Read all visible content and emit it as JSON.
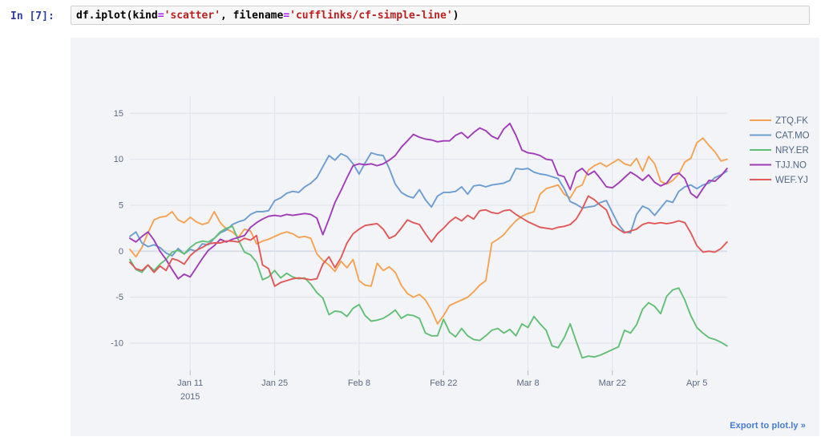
{
  "notebook": {
    "prompt": "In [7]:",
    "code_tokens": [
      {
        "text": "df.iplot(kind",
        "type": "plain"
      },
      {
        "text": "=",
        "type": "op"
      },
      {
        "text": "'scatter'",
        "type": "string"
      },
      {
        "text": ", filename",
        "type": "plain"
      },
      {
        "text": "=",
        "type": "op"
      },
      {
        "text": "'cufflinks/cf-simple-line'",
        "type": "string"
      },
      {
        "text": ")",
        "type": "plain"
      }
    ]
  },
  "export_link_label": "Export to plot.ly »",
  "colors": {
    "chart_background": "#f2f4f8",
    "grid": "#e2e6ee",
    "zero_line": "#d9dee8",
    "tick_mark": "#b4bcc9",
    "tick_text": "#5c6a82",
    "legend_text": "#506784",
    "prompt_blue": "#303F9F",
    "string_red": "#BA2121",
    "operator_purple": "#AA22FF",
    "export_blue": "#447adb"
  },
  "chart_data": {
    "type": "line",
    "title": "",
    "xlabel": "",
    "ylabel": "",
    "grid": true,
    "legend_position": "right",
    "x_unit": "days since Jan 1 2015 (daily points)",
    "x_range": [
      0,
      99
    ],
    "ylim": [
      -13.2,
      16.8
    ],
    "yticks": [
      15,
      10,
      5,
      0,
      -5,
      -10
    ],
    "xticks": [
      {
        "day": 10,
        "label": "Jan 11",
        "sublabel": "2015"
      },
      {
        "day": 24,
        "label": "Jan 25",
        "sublabel": ""
      },
      {
        "day": 38,
        "label": "Feb 8",
        "sublabel": ""
      },
      {
        "day": 52,
        "label": "Feb 22",
        "sublabel": ""
      },
      {
        "day": 66,
        "label": "Mar 8",
        "sublabel": ""
      },
      {
        "day": 80,
        "label": "Mar 22",
        "sublabel": ""
      },
      {
        "day": 94,
        "label": "Apr 5",
        "sublabel": ""
      }
    ],
    "series": [
      {
        "name": "ZTQ.FK",
        "color": "#f5a352",
        "values": [
          0.2,
          -0.6,
          0.4,
          2.0,
          3.4,
          3.7,
          3.8,
          4.3,
          3.4,
          3.1,
          3.7,
          3.2,
          2.9,
          3.1,
          4.3,
          3.1,
          2.4,
          2.1,
          1.5,
          2.4,
          2.2,
          0.8,
          1.1,
          1.3,
          1.6,
          1.9,
          2.1,
          1.9,
          1.5,
          1.6,
          1.4,
          -0.3,
          -1.0,
          -1.5,
          -2.2,
          -1.1,
          -1.8,
          -0.9,
          -3.2,
          -3.7,
          -3.8,
          -1.3,
          -2.1,
          -1.7,
          -2.3,
          -3.7,
          -4.6,
          -5.0,
          -4.7,
          -5.3,
          -6.4,
          -7.9,
          -7.0,
          -5.9,
          -5.6,
          -5.3,
          -5.0,
          -4.4,
          -3.7,
          -3.2,
          0.9,
          1.3,
          1.8,
          2.6,
          3.3,
          3.8,
          4.1,
          4.3,
          6.2,
          6.8,
          7.0,
          7.2,
          6.2,
          5.8,
          6.9,
          7.2,
          8.8,
          9.3,
          9.6,
          9.2,
          9.6,
          10.0,
          9.5,
          9.3,
          10.1,
          8.7,
          10.3,
          9.5,
          7.6,
          7.3,
          7.7,
          8.4,
          9.7,
          10.1,
          11.8,
          12.3,
          11.5,
          10.8,
          9.8,
          10.0
        ]
      },
      {
        "name": "CAT.MO",
        "color": "#6d9dd1",
        "values": [
          1.6,
          2.1,
          0.9,
          0.5,
          0.7,
          0.4,
          -0.2,
          -0.5,
          0.3,
          -0.3,
          0.2,
          0.0,
          0.8,
          0.7,
          1.4,
          2.0,
          2.3,
          2.9,
          3.2,
          3.4,
          4.0,
          4.3,
          4.3,
          4.4,
          5.5,
          5.8,
          6.3,
          6.5,
          6.4,
          7.0,
          7.4,
          8.0,
          9.2,
          10.4,
          9.9,
          10.6,
          10.3,
          9.5,
          8.4,
          9.6,
          10.7,
          10.5,
          10.4,
          9.0,
          7.3,
          6.4,
          6.0,
          5.8,
          6.7,
          5.6,
          4.8,
          6.0,
          6.4,
          6.4,
          6.5,
          7.0,
          6.2,
          7.1,
          7.2,
          7.0,
          7.2,
          7.3,
          7.4,
          7.7,
          9.0,
          8.9,
          9.0,
          8.6,
          8.4,
          8.3,
          8.1,
          7.9,
          6.8,
          5.4,
          5.1,
          4.7,
          4.8,
          4.9,
          5.3,
          5.5,
          4.2,
          2.9,
          2.1,
          2.0,
          4.0,
          4.9,
          4.6,
          3.9,
          4.7,
          5.5,
          5.3,
          6.5,
          7.0,
          7.2,
          6.8,
          7.2,
          7.4,
          8.0,
          8.3,
          8.7
        ]
      },
      {
        "name": "NRY.ER",
        "color": "#63bf75",
        "values": [
          -0.9,
          -2.0,
          -2.3,
          -1.5,
          -2.1,
          -1.4,
          -0.9,
          -0.1,
          0.1,
          -0.3,
          0.4,
          0.9,
          1.1,
          1.0,
          1.4,
          2.1,
          2.5,
          2.7,
          1.2,
          -0.1,
          -0.4,
          -1.2,
          -3.1,
          -2.8,
          -2.1,
          -2.9,
          -2.4,
          -2.8,
          -3.0,
          -2.9,
          -3.6,
          -4.5,
          -5.1,
          -6.9,
          -6.5,
          -6.6,
          -7.1,
          -6.2,
          -5.8,
          -7.0,
          -7.6,
          -7.5,
          -7.3,
          -6.9,
          -6.4,
          -7.3,
          -6.9,
          -7.0,
          -7.3,
          -8.9,
          -9.2,
          -9.2,
          -7.4,
          -8.8,
          -9.3,
          -8.4,
          -9.2,
          -9.6,
          -9.7,
          -9.2,
          -8.6,
          -8.4,
          -8.9,
          -8.5,
          -9.2,
          -7.9,
          -8.3,
          -7.1,
          -7.9,
          -8.6,
          -10.3,
          -10.5,
          -9.4,
          -7.9,
          -9.8,
          -11.6,
          -11.4,
          -11.5,
          -11.3,
          -11.0,
          -10.7,
          -10.4,
          -8.6,
          -8.9,
          -8.0,
          -6.3,
          -5.6,
          -6.0,
          -6.8,
          -4.9,
          -4.2,
          -4.0,
          -5.3,
          -7.0,
          -8.3,
          -8.9,
          -9.4,
          -9.6,
          -9.9,
          -10.3
        ]
      },
      {
        "name": "TJJ.NO",
        "color": "#a13cb8",
        "values": [
          1.4,
          1.0,
          1.6,
          2.1,
          1.2,
          0.0,
          -0.9,
          -2.0,
          -3.0,
          -2.5,
          -2.8,
          -1.8,
          -0.8,
          0.1,
          0.6,
          1.3,
          1.0,
          1.3,
          1.5,
          1.7,
          2.6,
          3.1,
          3.5,
          3.8,
          3.9,
          3.8,
          4.0,
          3.9,
          4.0,
          4.1,
          4.0,
          3.6,
          1.8,
          3.5,
          5.3,
          6.6,
          8.0,
          9.3,
          9.5,
          9.4,
          9.5,
          9.3,
          9.5,
          9.9,
          10.4,
          11.3,
          12.0,
          12.7,
          12.4,
          12.2,
          12.1,
          11.9,
          12.0,
          12.0,
          12.6,
          12.9,
          12.3,
          12.9,
          13.4,
          13.1,
          12.5,
          12.2,
          13.3,
          13.9,
          12.6,
          11.0,
          10.7,
          10.6,
          10.4,
          10.0,
          9.9,
          8.3,
          8.1,
          6.7,
          8.6,
          9.0,
          8.3,
          8.7,
          7.9,
          7.0,
          6.9,
          7.4,
          8.0,
          8.6,
          8.2,
          7.7,
          8.3,
          7.5,
          7.1,
          7.4,
          8.3,
          8.5,
          7.9,
          6.3,
          5.8,
          6.8,
          7.7,
          7.6,
          8.2,
          9.0
        ]
      },
      {
        "name": "WEF.YJ",
        "color": "#e05858",
        "values": [
          -1.2,
          -1.9,
          -2.1,
          -1.5,
          -2.3,
          -1.6,
          -2.1,
          -0.8,
          -1.0,
          -1.4,
          -0.5,
          0.1,
          0.4,
          0.8,
          0.9,
          0.9,
          1.1,
          1.1,
          1.0,
          1.4,
          1.2,
          1.7,
          -1.5,
          -1.9,
          -3.8,
          -3.4,
          -3.2,
          -3.0,
          -2.9,
          -3.0,
          -3.1,
          -3.0,
          -1.4,
          -0.6,
          -1.8,
          -0.7,
          0.9,
          1.9,
          2.4,
          2.8,
          2.9,
          3.0,
          2.4,
          1.4,
          1.7,
          2.5,
          3.4,
          3.1,
          2.9,
          1.9,
          1.0,
          1.9,
          2.5,
          3.2,
          3.7,
          3.3,
          3.9,
          3.5,
          4.4,
          4.5,
          4.2,
          4.1,
          4.4,
          4.5,
          4.0,
          3.6,
          3.2,
          2.9,
          2.6,
          2.5,
          2.4,
          2.6,
          2.7,
          2.9,
          3.5,
          4.6,
          6.0,
          5.6,
          5.0,
          4.5,
          2.9,
          2.4,
          2.0,
          2.2,
          2.4,
          2.9,
          3.1,
          3.0,
          3.1,
          3.0,
          3.1,
          3.3,
          3.1,
          2.0,
          0.6,
          -0.1,
          0.0,
          -0.1,
          0.3,
          1.0
        ]
      }
    ]
  }
}
